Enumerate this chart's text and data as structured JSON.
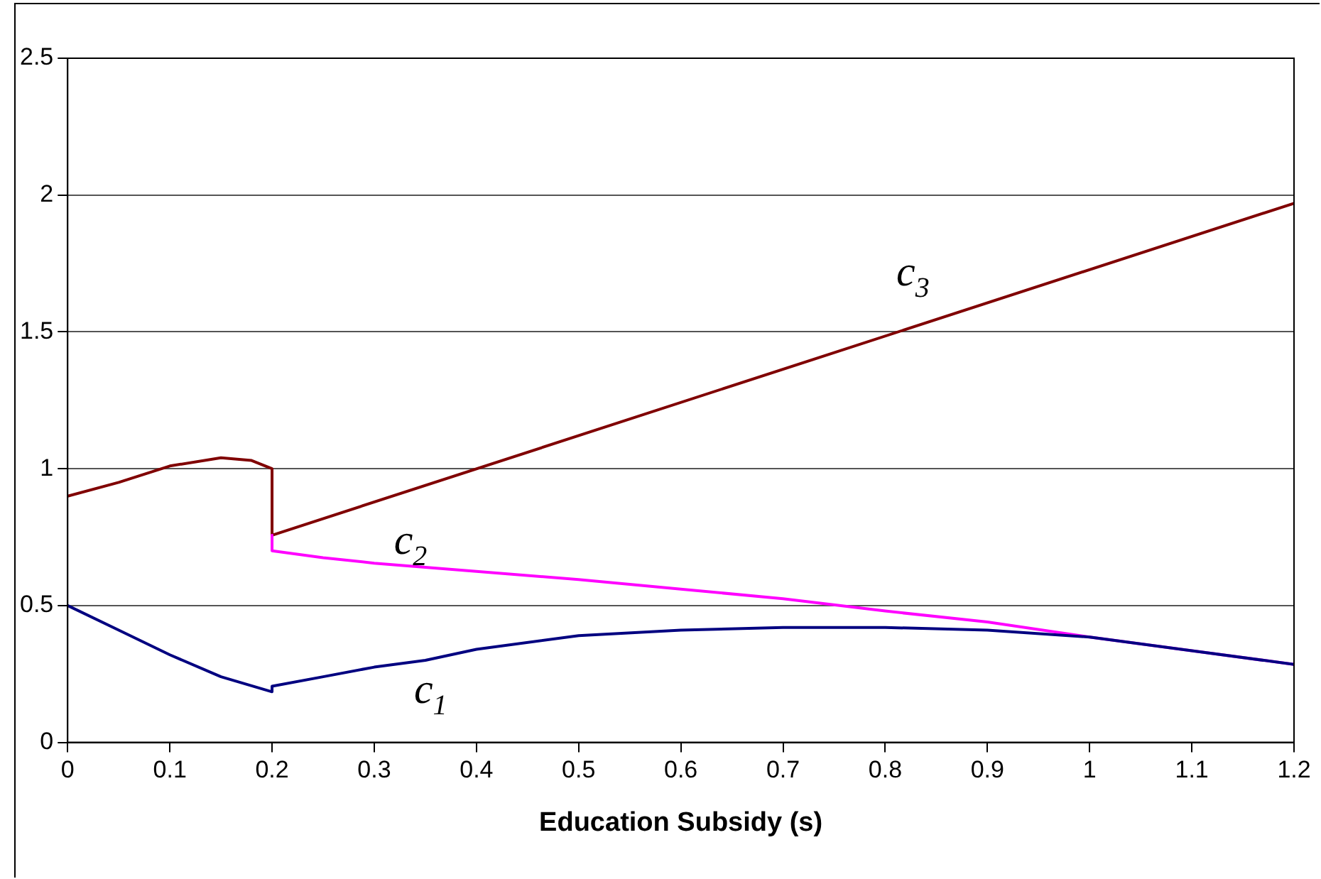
{
  "chart_data": {
    "type": "line",
    "xlabel": "Education Subsidy (s)",
    "xlim": [
      0,
      1.2
    ],
    "xticks": [
      0,
      0.1,
      0.2,
      0.3,
      0.4,
      0.5,
      0.6,
      0.7,
      0.8,
      0.9,
      1,
      1.1,
      1.2
    ],
    "ylim": [
      0,
      2.5
    ],
    "yticks": [
      0,
      0.5,
      1,
      1.5,
      2,
      2.5
    ],
    "grid": "y",
    "legend": false,
    "marker": "none",
    "line_style": "solid",
    "series": [
      {
        "name": "c$_{1}$",
        "color": "#000080",
        "x": [
          0,
          0.05,
          0.1,
          0.15,
          0.2,
          0.2,
          0.25,
          0.3,
          0.35,
          0.4,
          0.5,
          0.6,
          0.7,
          0.75,
          0.8,
          0.9,
          1,
          1.1,
          1.2
        ],
        "values": [
          0.5,
          0.41,
          0.32,
          0.24,
          0.185,
          0.205,
          0.24,
          0.275,
          0.3,
          0.34,
          0.39,
          0.41,
          0.42,
          0.42,
          0.42,
          0.41,
          0.385,
          0.335,
          0.285
        ]
      },
      {
        "name": "c$_{2}$",
        "color": "#ff00ff",
        "x": [
          0.2,
          0.2,
          0.25,
          0.3,
          0.4,
          0.5,
          0.6,
          0.7,
          0.8,
          0.9,
          1,
          1.1,
          1.2
        ],
        "values": [
          0.757,
          0.7,
          0.675,
          0.655,
          0.625,
          0.595,
          0.56,
          0.525,
          0.48,
          0.44,
          0.385,
          0.335,
          0.285
        ]
      },
      {
        "name": "c$_{3}$",
        "color": "#800000",
        "x": [
          0,
          0.05,
          0.1,
          0.15,
          0.18,
          0.19,
          0.2,
          0.2,
          1.2
        ],
        "values": [
          0.9,
          0.95,
          1.01,
          1.04,
          1.03,
          1.015,
          1.0,
          0.757,
          1.97
        ]
      }
    ]
  }
}
